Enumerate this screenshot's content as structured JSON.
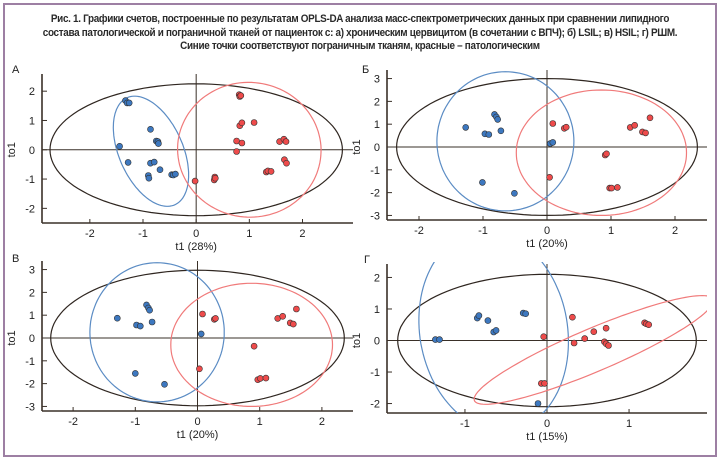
{
  "caption": {
    "line1": "Рис. 1. Графики счетов, построенные по результатам OPLS-DA анализа масс-спектрометрических данных при сравнении липидного",
    "line2": "состава патологической и пограничной тканей от пациенток с: а) хроническим цервицитом (в сочетании с ВПЧ); б) LSIL; в) HSIL; г) РШМ.",
    "line3": "Синие точки соответствуют пограничным тканям, красные – патологическим"
  },
  "colors": {
    "blue": "#3d78c0",
    "red": "#ee4b4b",
    "blue_ellipse": "#5b8cc4",
    "red_ellipse": "#f07a7a",
    "black_ellipse": "#2f2620",
    "axis": "#3a3028",
    "frame": "#9d7fa3"
  },
  "chart_data": [
    {
      "type": "scatter",
      "panel": "A",
      "title": "А",
      "xlabel": "t1 (28%)",
      "ylabel": "to1",
      "xlim": [
        -2.9,
        2.95
      ],
      "ylim": [
        -2.5,
        2.45
      ],
      "xticks": [
        -2,
        -1,
        0,
        1,
        2
      ],
      "yticks": [
        -2,
        -1,
        0,
        1,
        2
      ],
      "series": [
        {
          "name": "Пограничные ткани",
          "color": "blue",
          "points": [
            [
              -1.33,
              1.68
            ],
            [
              -1.3,
              1.6
            ],
            [
              -1.26,
              1.6
            ],
            [
              -0.86,
              0.7
            ],
            [
              -0.75,
              0.3
            ],
            [
              -0.72,
              0.28
            ],
            [
              -0.71,
              0.21
            ],
            [
              -1.44,
              0.12
            ],
            [
              -1.28,
              -0.43
            ],
            [
              -0.86,
              -0.46
            ],
            [
              -0.79,
              -0.42
            ],
            [
              -0.68,
              -0.68
            ],
            [
              -0.9,
              -0.88
            ],
            [
              -0.89,
              -0.97
            ],
            [
              -0.46,
              -0.85
            ],
            [
              -0.43,
              -0.86
            ],
            [
              -0.39,
              -0.83
            ]
          ]
        },
        {
          "name": "Патологические ткани",
          "color": "red",
          "points": [
            [
              0.81,
              1.88
            ],
            [
              0.82,
              1.82
            ],
            [
              0.84,
              1.85
            ],
            [
              0.82,
              0.82
            ],
            [
              0.86,
              0.92
            ],
            [
              1.09,
              0.93
            ],
            [
              0.76,
              0.3
            ],
            [
              0.86,
              0.23
            ],
            [
              0.76,
              -0.06
            ],
            [
              -0.02,
              -1.07
            ],
            [
              0.35,
              -0.93
            ],
            [
              0.34,
              -1.03
            ],
            [
              0.36,
              -0.97
            ],
            [
              1.57,
              0.28
            ],
            [
              1.65,
              0.36
            ],
            [
              1.69,
              0.28
            ],
            [
              1.66,
              -0.34
            ],
            [
              1.7,
              -0.46
            ],
            [
              1.32,
              -0.76
            ],
            [
              1.35,
              -0.72
            ],
            [
              1.41,
              -0.74
            ]
          ]
        }
      ],
      "ellipses": [
        {
          "name": "model-95",
          "color": "black_ellipse",
          "cx": 0.0,
          "cy": 0.0,
          "rx": 2.75,
          "ry": 2.25,
          "angle": 0
        },
        {
          "name": "blue-group",
          "color": "blue_ellipse",
          "cx": -0.85,
          "cy": -0.05,
          "rx": 0.6,
          "ry": 2.0,
          "angle": -24
        },
        {
          "name": "red-group",
          "color": "red_ellipse",
          "cx": 1.0,
          "cy": 0.0,
          "rx": 1.35,
          "ry": 2.3,
          "angle": 5
        }
      ]
    },
    {
      "type": "scatter",
      "panel": "Б",
      "title": "Б",
      "xlabel": "t1 (20%)",
      "ylabel": "to1",
      "xlim": [
        -2.5,
        2.5
      ],
      "ylim": [
        -3.2,
        3.2
      ],
      "xticks": [
        -2,
        -1,
        0,
        1,
        2
      ],
      "yticks": [
        -3,
        -2,
        -1,
        0,
        1,
        2,
        3
      ],
      "series": [
        {
          "name": "Пограничные ткани",
          "color": "blue",
          "points": [
            [
              -0.82,
              1.43
            ],
            [
              -0.79,
              1.32
            ],
            [
              -0.77,
              1.21
            ],
            [
              -1.27,
              0.86
            ],
            [
              -0.97,
              0.58
            ],
            [
              -0.91,
              0.55
            ],
            [
              -0.72,
              0.71
            ],
            [
              0.05,
              0.15
            ],
            [
              0.09,
              0.2
            ],
            [
              -1.01,
              -1.55
            ],
            [
              -0.51,
              -2.03
            ]
          ]
        },
        {
          "name": "Патологические ткани",
          "color": "red",
          "points": [
            [
              0.09,
              1.03
            ],
            [
              0.27,
              0.82
            ],
            [
              0.3,
              0.87
            ],
            [
              1.3,
              0.86
            ],
            [
              1.37,
              0.95
            ],
            [
              1.49,
              0.66
            ],
            [
              1.54,
              0.62
            ],
            [
              1.61,
              1.28
            ],
            [
              0.91,
              -0.35
            ],
            [
              0.93,
              -0.3
            ],
            [
              0.04,
              -1.33
            ],
            [
              0.98,
              -1.8
            ],
            [
              1.01,
              -1.8
            ],
            [
              1.1,
              -1.77
            ]
          ]
        }
      ],
      "ellipses": [
        {
          "name": "model-95",
          "color": "black_ellipse",
          "cx": 0.0,
          "cy": 0.0,
          "rx": 2.35,
          "ry": 3.0,
          "angle": 0
        },
        {
          "name": "blue-group",
          "color": "blue_ellipse",
          "cx": -0.65,
          "cy": 0.25,
          "rx": 1.07,
          "ry": 3.05,
          "angle": 0
        },
        {
          "name": "red-group",
          "color": "red_ellipse",
          "cx": 0.85,
          "cy": -0.25,
          "rx": 1.33,
          "ry": 2.75,
          "angle": 0
        }
      ]
    },
    {
      "type": "scatter",
      "panel": "В",
      "title": "В",
      "xlabel": "t1 (20%)",
      "ylabel": "to1",
      "xlim": [
        -2.5,
        2.5
      ],
      "ylim": [
        -3.2,
        3.2
      ],
      "xticks": [
        -2,
        -1,
        0,
        1,
        2
      ],
      "yticks": [
        -3,
        -2,
        -1,
        0,
        1,
        2,
        3
      ],
      "series": [
        {
          "name": "Пограничные ткани",
          "color": "blue",
          "points": [
            [
              -0.82,
              1.45
            ],
            [
              -0.79,
              1.32
            ],
            [
              -0.77,
              1.22
            ],
            [
              -1.29,
              0.87
            ],
            [
              -0.98,
              0.57
            ],
            [
              -0.92,
              0.52
            ],
            [
              -0.73,
              0.7
            ],
            [
              0.06,
              0.18
            ],
            [
              -1.0,
              -1.55
            ],
            [
              -0.53,
              -2.03
            ]
          ]
        },
        {
          "name": "Патологические ткани",
          "color": "red",
          "points": [
            [
              0.08,
              1.05
            ],
            [
              0.27,
              0.82
            ],
            [
              0.29,
              0.86
            ],
            [
              1.29,
              0.86
            ],
            [
              1.37,
              0.95
            ],
            [
              1.49,
              0.66
            ],
            [
              1.54,
              0.61
            ],
            [
              1.59,
              1.27
            ],
            [
              0.91,
              -0.36
            ],
            [
              0.03,
              -1.35
            ],
            [
              0.97,
              -1.83
            ],
            [
              1.01,
              -1.77
            ],
            [
              1.1,
              -1.76
            ]
          ]
        }
      ],
      "ellipses": [
        {
          "name": "model-95",
          "color": "black_ellipse",
          "cx": 0.0,
          "cy": 0.0,
          "rx": 2.36,
          "ry": 2.97,
          "angle": 0
        },
        {
          "name": "blue-group",
          "color": "blue_ellipse",
          "cx": -0.65,
          "cy": 0.25,
          "rx": 1.08,
          "ry": 3.05,
          "angle": 0
        },
        {
          "name": "red-group",
          "color": "red_ellipse",
          "cx": 0.87,
          "cy": -0.3,
          "rx": 1.3,
          "ry": 2.7,
          "angle": 0
        }
      ]
    },
    {
      "type": "scatter",
      "panel": "Г",
      "title": "Г",
      "xlabel": "t1 (15%)",
      "ylabel": "to1",
      "xlim": [
        -1.95,
        1.95
      ],
      "ylim": [
        -2.3,
        2.3
      ],
      "xticks": [
        -1,
        0,
        1
      ],
      "yticks": [
        -2,
        -1,
        0,
        1,
        2
      ],
      "series": [
        {
          "name": "Пограничные ткани",
          "color": "blue",
          "points": [
            [
              -1.36,
              0.03
            ],
            [
              -1.31,
              0.03
            ],
            [
              -0.85,
              0.71
            ],
            [
              -0.83,
              0.79
            ],
            [
              -0.72,
              0.63
            ],
            [
              -0.65,
              0.27
            ],
            [
              -0.62,
              0.32
            ],
            [
              -0.29,
              0.87
            ],
            [
              -0.26,
              0.85
            ],
            [
              -0.11,
              -2.0
            ]
          ]
        },
        {
          "name": "Патологические ткани",
          "color": "red",
          "points": [
            [
              -0.04,
              0.12
            ],
            [
              0.31,
              0.74
            ],
            [
              0.33,
              -0.08
            ],
            [
              0.46,
              0.06
            ],
            [
              0.57,
              0.28
            ],
            [
              0.72,
              0.39
            ],
            [
              0.7,
              -0.04
            ],
            [
              0.72,
              -0.1
            ],
            [
              0.75,
              -0.16
            ],
            [
              1.19,
              0.56
            ],
            [
              1.21,
              0.53
            ],
            [
              1.24,
              0.5
            ],
            [
              -0.07,
              -1.36
            ],
            [
              -0.03,
              -1.36
            ]
          ]
        }
      ],
      "ellipses": [
        {
          "name": "model-95",
          "color": "black_ellipse",
          "cx": 0.0,
          "cy": 0.0,
          "rx": 1.82,
          "ry": 2.1,
          "angle": 0
        },
        {
          "name": "blue-group",
          "color": "blue_ellipse",
          "cx": -0.65,
          "cy": 0.3,
          "rx": 0.9,
          "ry": 3.2,
          "angle": -10
        },
        {
          "name": "red-group",
          "color": "red_ellipse",
          "cx": 0.57,
          "cy": -0.3,
          "rx": 1.58,
          "ry": 0.68,
          "angle": -23
        }
      ]
    }
  ]
}
